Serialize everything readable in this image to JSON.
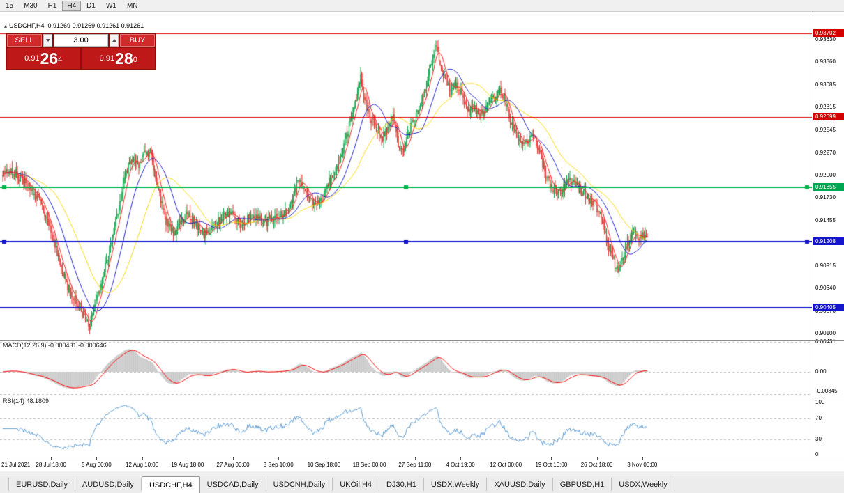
{
  "toolbar": {
    "timeframes": [
      {
        "label": "15",
        "active": false
      },
      {
        "label": "M30",
        "active": false
      },
      {
        "label": "H1",
        "active": false
      },
      {
        "label": "H4",
        "active": true
      },
      {
        "label": "D1",
        "active": false
      },
      {
        "label": "W1",
        "active": false
      },
      {
        "label": "MN",
        "active": false
      }
    ]
  },
  "chart_header": {
    "collapse_icon": "▴",
    "symbol": "USDCHF,H4",
    "ohlc": "0.91269 0.91269 0.91261 0.91261"
  },
  "trade_panel": {
    "sell_label": "SELL",
    "buy_label": "BUY",
    "volume": "3.00",
    "bid": {
      "big": "0.91",
      "pips": "26",
      "sup": "4"
    },
    "ask": {
      "big": "0.91",
      "pips": "28",
      "sup": "0"
    }
  },
  "price_axis": {
    "regular": [
      "0.93630",
      "0.93360",
      "0.93085",
      "0.92815",
      "0.92545",
      "0.92270",
      "0.92000",
      "0.91730",
      "0.91455",
      "0.90915",
      "0.90640",
      "0.90370",
      "0.90100"
    ],
    "badges": [
      {
        "value": "0.93702",
        "color": "#D40000"
      },
      {
        "value": "0.92699",
        "color": "#D40000"
      },
      {
        "value": "0.91855",
        "color": "#00A651"
      },
      {
        "value": "0.91208",
        "color": "#1515CD"
      },
      {
        "value": "0.90405",
        "color": "#1515CD"
      }
    ]
  },
  "macd_panel": {
    "label": "MACD(12,26,9) -0.000431 -0.000646",
    "axis": [
      "0.00431",
      "0.00",
      "-0.00345"
    ],
    "levels": [
      0.00431,
      0,
      -0.00345
    ]
  },
  "rsi_panel": {
    "label": "RSI(14) 48.1809",
    "axis": [
      "100",
      "70",
      "30",
      "0"
    ],
    "axis_values": [
      100,
      70,
      30,
      0
    ],
    "dashed_levels": [
      70,
      30
    ]
  },
  "time_axis": [
    "21 Jul 2021",
    "28 Jul 18:00",
    "5 Aug 00:00",
    "12 Aug 10:00",
    "19 Aug 18:00",
    "27 Aug 00:00",
    "3 Sep 10:00",
    "10 Sep 18:00",
    "18 Sep 00:00",
    "27 Sep 11:00",
    "4 Oct 19:00",
    "12 Oct 00:00",
    "19 Oct 10:00",
    "26 Oct 18:00",
    "3 Nov 00:00"
  ],
  "tabs": [
    {
      "label": "EURUSD,Daily",
      "active": false
    },
    {
      "label": "AUDUSD,Daily",
      "active": false
    },
    {
      "label": "USDCHF,H4",
      "active": true
    },
    {
      "label": "USDCAD,Daily",
      "active": false
    },
    {
      "label": "USDCNH,Daily",
      "active": false
    },
    {
      "label": "UKOil,H4",
      "active": false
    },
    {
      "label": "DJ30,H1",
      "active": false
    },
    {
      "label": "USDX,Weekly",
      "active": false
    },
    {
      "label": "XAUUSD,Daily",
      "active": false
    },
    {
      "label": "GBPUSD,H1",
      "active": false
    },
    {
      "label": "USDX,Weekly",
      "active": false
    }
  ],
  "chart_data": {
    "type": "candlestick",
    "symbol": "USDCHF",
    "timeframe": "H4",
    "title": "USDCHF,H4",
    "last_price": 0.91261,
    "price_range": {
      "top": 0.93848,
      "bottom": 0.90024
    },
    "h_lines": [
      {
        "price": 0.93702,
        "color": "#E00000",
        "width": 1,
        "handles": false
      },
      {
        "price": 0.92699,
        "color": "#E00000",
        "width": 1,
        "handles": false
      },
      {
        "price": 0.91855,
        "color": "#00B44C",
        "width": 2,
        "handles": true
      },
      {
        "price": 0.91208,
        "color": "#1515CD",
        "width": 2,
        "handles": true
      },
      {
        "price": 0.90405,
        "color": "#1515CD",
        "width": 2,
        "handles": false
      }
    ],
    "indicators": {
      "ma": [
        {
          "period": 50,
          "color": "#FFD700"
        },
        {
          "period": 24,
          "color": "#2020CC"
        },
        {
          "period": 8,
          "color": "#FF2020"
        }
      ],
      "macd": {
        "fast": 12,
        "slow": 26,
        "signal": 9
      },
      "rsi": {
        "period": 14,
        "current": 48.1809
      }
    },
    "colors": {
      "up": "#10A54A",
      "down": "#E53935",
      "macd_hist": "#C8C8C8",
      "macd_signal": "#FF0000",
      "rsi": "#5B9BD5",
      "background": "#FFFFFF"
    },
    "anchors": [
      [
        4,
        0.92
      ],
      [
        15,
        0.9207
      ],
      [
        30,
        0.9196
      ],
      [
        45,
        0.9183
      ],
      [
        60,
        0.9165
      ],
      [
        75,
        0.9128
      ],
      [
        88,
        0.9085
      ],
      [
        100,
        0.9062
      ],
      [
        112,
        0.9045
      ],
      [
        122,
        0.9028
      ],
      [
        128,
        0.9018
      ],
      [
        134,
        0.904
      ],
      [
        142,
        0.9062
      ],
      [
        152,
        0.9095
      ],
      [
        162,
        0.913
      ],
      [
        172,
        0.9168
      ],
      [
        180,
        0.9203
      ],
      [
        190,
        0.9222
      ],
      [
        198,
        0.9212
      ],
      [
        207,
        0.9227
      ],
      [
        216,
        0.9226
      ],
      [
        226,
        0.9188
      ],
      [
        238,
        0.9145
      ],
      [
        250,
        0.9128
      ],
      [
        260,
        0.9146
      ],
      [
        270,
        0.9155
      ],
      [
        280,
        0.9142
      ],
      [
        293,
        0.913
      ],
      [
        306,
        0.9136
      ],
      [
        318,
        0.915
      ],
      [
        330,
        0.9156
      ],
      [
        343,
        0.9141
      ],
      [
        356,
        0.9149
      ],
      [
        368,
        0.9151
      ],
      [
        380,
        0.9143
      ],
      [
        393,
        0.915
      ],
      [
        406,
        0.9153
      ],
      [
        418,
        0.9168
      ],
      [
        428,
        0.9196
      ],
      [
        438,
        0.918
      ],
      [
        450,
        0.9163
      ],
      [
        461,
        0.9172
      ],
      [
        471,
        0.919
      ],
      [
        481,
        0.9206
      ],
      [
        491,
        0.9229
      ],
      [
        501,
        0.9262
      ],
      [
        511,
        0.9295
      ],
      [
        517,
        0.9322
      ],
      [
        523,
        0.9291
      ],
      [
        531,
        0.9268
      ],
      [
        541,
        0.9256
      ],
      [
        549,
        0.9246
      ],
      [
        557,
        0.9261
      ],
      [
        564,
        0.9271
      ],
      [
        571,
        0.9238
      ],
      [
        579,
        0.9231
      ],
      [
        587,
        0.9254
      ],
      [
        595,
        0.927
      ],
      [
        603,
        0.9287
      ],
      [
        611,
        0.9309
      ],
      [
        619,
        0.9338
      ],
      [
        625,
        0.9356
      ],
      [
        631,
        0.9331
      ],
      [
        639,
        0.9313
      ],
      [
        647,
        0.9301
      ],
      [
        655,
        0.9311
      ],
      [
        663,
        0.9296
      ],
      [
        671,
        0.9276
      ],
      [
        679,
        0.9281
      ],
      [
        687,
        0.9273
      ],
      [
        695,
        0.9276
      ],
      [
        703,
        0.9288
      ],
      [
        711,
        0.9297
      ],
      [
        717,
        0.9304
      ],
      [
        725,
        0.9289
      ],
      [
        733,
        0.9263
      ],
      [
        741,
        0.9246
      ],
      [
        749,
        0.9236
      ],
      [
        757,
        0.9243
      ],
      [
        765,
        0.9246
      ],
      [
        773,
        0.9229
      ],
      [
        781,
        0.9206
      ],
      [
        789,
        0.9189
      ],
      [
        797,
        0.9181
      ],
      [
        805,
        0.918
      ],
      [
        813,
        0.9194
      ],
      [
        821,
        0.9191
      ],
      [
        829,
        0.9186
      ],
      [
        837,
        0.9179
      ],
      [
        845,
        0.9171
      ],
      [
        853,
        0.9166
      ],
      [
        861,
        0.9153
      ],
      [
        867,
        0.9131
      ],
      [
        873,
        0.9113
      ],
      [
        879,
        0.9099
      ],
      [
        885,
        0.9086
      ],
      [
        891,
        0.9097
      ],
      [
        897,
        0.9111
      ],
      [
        903,
        0.9124
      ],
      [
        909,
        0.9131
      ],
      [
        915,
        0.9127
      ],
      [
        921,
        0.9128
      ],
      [
        928,
        0.9126
      ]
    ]
  }
}
